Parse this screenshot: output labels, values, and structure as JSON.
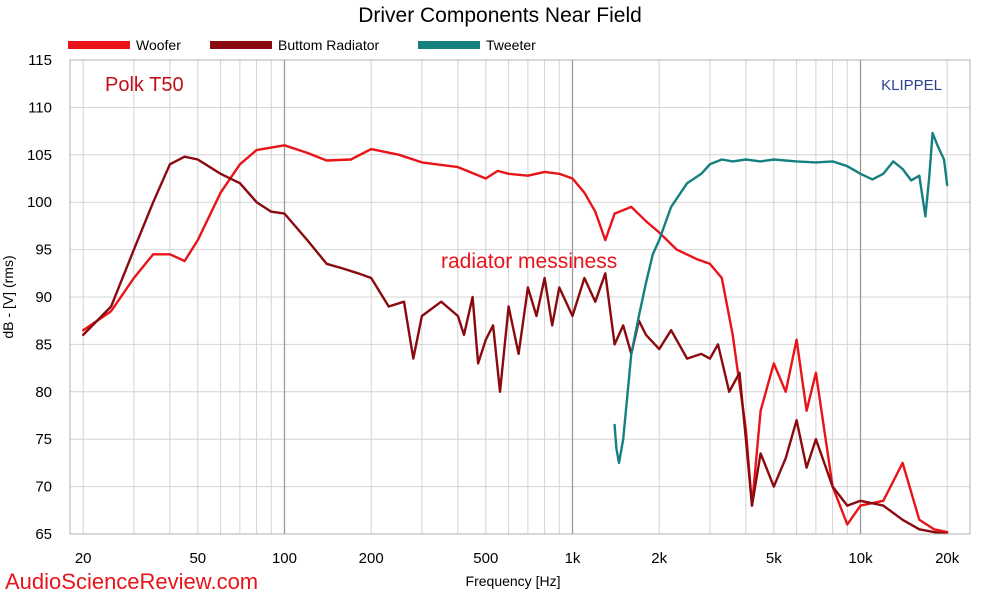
{
  "chart_data": {
    "type": "line",
    "title": "Driver Components Near Field",
    "xlabel": "Frequency [Hz]",
    "ylabel": "dB - [V]  (rms)",
    "x_scale": "log",
    "xlim": [
      18,
      24000
    ],
    "ylim": [
      65,
      115
    ],
    "grid": true,
    "legend_position": "top",
    "x_ticks": [
      {
        "value": 20,
        "label": "20"
      },
      {
        "value": 50,
        "label": "50"
      },
      {
        "value": 100,
        "label": "100"
      },
      {
        "value": 200,
        "label": "200"
      },
      {
        "value": 500,
        "label": "500"
      },
      {
        "value": 1000,
        "label": "1k"
      },
      {
        "value": 2000,
        "label": "2k"
      },
      {
        "value": 5000,
        "label": "5k"
      },
      {
        "value": 10000,
        "label": "10k"
      },
      {
        "value": 20000,
        "label": "20k"
      }
    ],
    "y_ticks": [
      65,
      70,
      75,
      80,
      85,
      90,
      95,
      100,
      105,
      110,
      115
    ],
    "series": [
      {
        "name": "Woofer",
        "color": "#e8141a",
        "points": [
          [
            20,
            86.5
          ],
          [
            25,
            88.5
          ],
          [
            30,
            92.0
          ],
          [
            35,
            94.5
          ],
          [
            40,
            94.5
          ],
          [
            45,
            93.8
          ],
          [
            50,
            96.0
          ],
          [
            60,
            101.0
          ],
          [
            70,
            104.0
          ],
          [
            80,
            105.5
          ],
          [
            100,
            106.0
          ],
          [
            120,
            105.2
          ],
          [
            140,
            104.4
          ],
          [
            170,
            104.5
          ],
          [
            200,
            105.6
          ],
          [
            250,
            105.0
          ],
          [
            300,
            104.2
          ],
          [
            400,
            103.7
          ],
          [
            500,
            102.5
          ],
          [
            550,
            103.3
          ],
          [
            600,
            103.0
          ],
          [
            700,
            102.8
          ],
          [
            800,
            103.2
          ],
          [
            900,
            103.0
          ],
          [
            1000,
            102.5
          ],
          [
            1100,
            101.0
          ],
          [
            1200,
            99.0
          ],
          [
            1300,
            96.0
          ],
          [
            1400,
            98.8
          ],
          [
            1600,
            99.5
          ],
          [
            1800,
            98.0
          ],
          [
            2000,
            96.8
          ],
          [
            2300,
            95.0
          ],
          [
            2700,
            94.0
          ],
          [
            3000,
            93.5
          ],
          [
            3300,
            92.0
          ],
          [
            3600,
            86.0
          ],
          [
            4000,
            76.0
          ],
          [
            4200,
            68.0
          ],
          [
            4500,
            78.0
          ],
          [
            5000,
            83.0
          ],
          [
            5500,
            80.0
          ],
          [
            6000,
            85.5
          ],
          [
            6500,
            78.0
          ],
          [
            7000,
            82.0
          ],
          [
            8000,
            70.0
          ],
          [
            9000,
            66.0
          ],
          [
            10000,
            68.0
          ],
          [
            12000,
            68.5
          ],
          [
            14000,
            72.5
          ],
          [
            16000,
            66.5
          ],
          [
            18000,
            65.5
          ],
          [
            20000,
            65.2
          ]
        ]
      },
      {
        "name": "Buttom Radiator",
        "color": "#8b0a0f",
        "points": [
          [
            20,
            86.0
          ],
          [
            25,
            89.0
          ],
          [
            30,
            95.0
          ],
          [
            35,
            100.0
          ],
          [
            40,
            104.0
          ],
          [
            45,
            104.8
          ],
          [
            50,
            104.5
          ],
          [
            60,
            103.0
          ],
          [
            70,
            102.0
          ],
          [
            80,
            100.0
          ],
          [
            90,
            99.0
          ],
          [
            100,
            98.8
          ],
          [
            120,
            96.0
          ],
          [
            140,
            93.5
          ],
          [
            160,
            93.0
          ],
          [
            180,
            92.5
          ],
          [
            200,
            92.0
          ],
          [
            230,
            89.0
          ],
          [
            260,
            89.5
          ],
          [
            280,
            83.5
          ],
          [
            300,
            88.0
          ],
          [
            350,
            89.5
          ],
          [
            400,
            88.0
          ],
          [
            420,
            86.0
          ],
          [
            450,
            90.0
          ],
          [
            470,
            83.0
          ],
          [
            500,
            85.5
          ],
          [
            530,
            87.0
          ],
          [
            560,
            80.0
          ],
          [
            600,
            89.0
          ],
          [
            650,
            84.0
          ],
          [
            700,
            91.0
          ],
          [
            750,
            88.0
          ],
          [
            800,
            92.0
          ],
          [
            850,
            87.0
          ],
          [
            900,
            91.0
          ],
          [
            1000,
            88.0
          ],
          [
            1100,
            92.0
          ],
          [
            1200,
            89.5
          ],
          [
            1300,
            92.5
          ],
          [
            1400,
            85.0
          ],
          [
            1500,
            87.0
          ],
          [
            1600,
            84.0
          ],
          [
            1700,
            87.5
          ],
          [
            1800,
            86.0
          ],
          [
            2000,
            84.5
          ],
          [
            2200,
            86.5
          ],
          [
            2500,
            83.5
          ],
          [
            2800,
            84.0
          ],
          [
            3000,
            83.5
          ],
          [
            3200,
            85.0
          ],
          [
            3500,
            80.0
          ],
          [
            3800,
            82.0
          ],
          [
            4000,
            75.0
          ],
          [
            4200,
            68.0
          ],
          [
            4500,
            73.5
          ],
          [
            5000,
            70.0
          ],
          [
            5500,
            73.0
          ],
          [
            6000,
            77.0
          ],
          [
            6500,
            72.0
          ],
          [
            7000,
            75.0
          ],
          [
            8000,
            70.0
          ],
          [
            9000,
            68.0
          ],
          [
            10000,
            68.5
          ],
          [
            12000,
            68.0
          ],
          [
            14000,
            66.5
          ],
          [
            16000,
            65.5
          ],
          [
            18000,
            65.2
          ],
          [
            20000,
            65.0
          ]
        ]
      },
      {
        "name": "Tweeter",
        "color": "#168080",
        "points": [
          [
            1400,
            76.5
          ],
          [
            1420,
            74.0
          ],
          [
            1450,
            72.5
          ],
          [
            1500,
            75.0
          ],
          [
            1600,
            84.0
          ],
          [
            1700,
            88.0
          ],
          [
            1800,
            91.5
          ],
          [
            1900,
            94.5
          ],
          [
            2000,
            96.0
          ],
          [
            2200,
            99.5
          ],
          [
            2500,
            102.0
          ],
          [
            2800,
            103.0
          ],
          [
            3000,
            104.0
          ],
          [
            3300,
            104.5
          ],
          [
            3600,
            104.3
          ],
          [
            4000,
            104.5
          ],
          [
            4500,
            104.3
          ],
          [
            5000,
            104.5
          ],
          [
            6000,
            104.3
          ],
          [
            7000,
            104.2
          ],
          [
            8000,
            104.3
          ],
          [
            9000,
            103.8
          ],
          [
            10000,
            103.0
          ],
          [
            11000,
            102.4
          ],
          [
            12000,
            103.0
          ],
          [
            13000,
            104.3
          ],
          [
            14000,
            103.5
          ],
          [
            15000,
            102.3
          ],
          [
            16000,
            102.8
          ],
          [
            16800,
            98.5
          ],
          [
            17300,
            102.5
          ],
          [
            17800,
            107.3
          ],
          [
            18500,
            106.0
          ],
          [
            19500,
            104.5
          ],
          [
            20000,
            101.8
          ]
        ]
      }
    ],
    "annotations": [
      {
        "text": "Polk T50",
        "color": "#c0101a"
      },
      {
        "text": "KLIPPEL",
        "color": "#2f3f8f"
      },
      {
        "text": "radiator messiness",
        "color": "#e8141a"
      }
    ]
  },
  "watermark": "AudioScienceReview.com"
}
